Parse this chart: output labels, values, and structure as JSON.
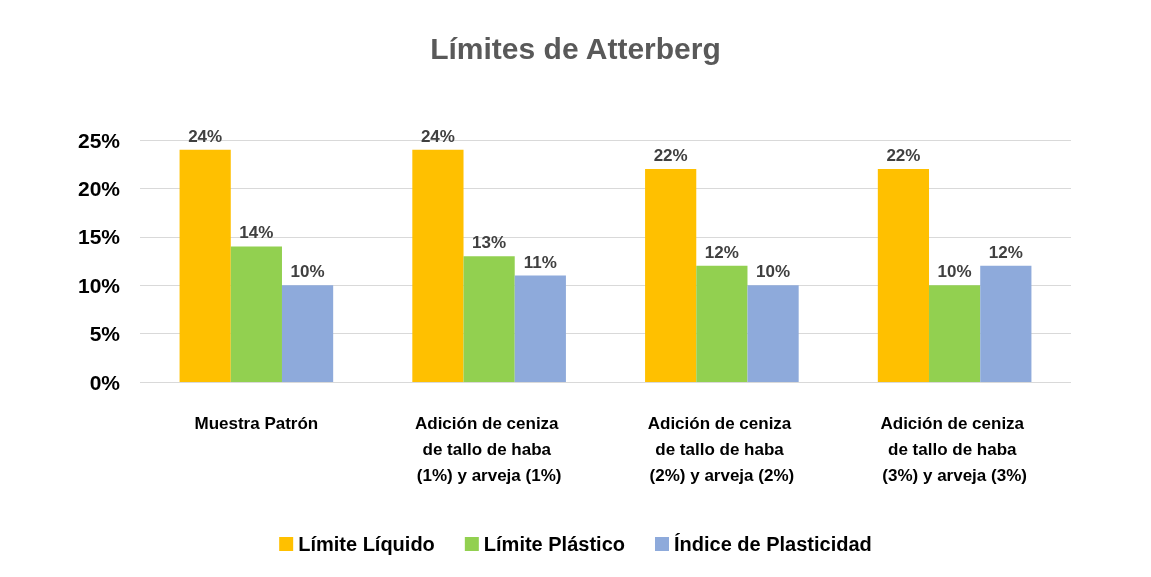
{
  "chart_data": {
    "type": "bar",
    "title": "Límites de Atterberg",
    "categories": [
      "Muestra Patrón",
      "Adición de ceniza de tallo de haba (1%) y arveja (1%)",
      "Adición de ceniza de tallo de haba (2%) y arveja (2%)",
      "Adición de ceniza de tallo de haba (3%) y arveja (3%)"
    ],
    "series": [
      {
        "name": "Límite Líquido",
        "color": "#ffc000",
        "values": [
          24,
          24,
          22,
          22
        ],
        "value_labels": [
          "24%",
          "24%",
          "22%",
          "22%"
        ]
      },
      {
        "name": "Límite Plástico",
        "color": "#92d050",
        "values": [
          14,
          13,
          12,
          10
        ],
        "value_labels": [
          "14%",
          "13%",
          "12%",
          "10%"
        ]
      },
      {
        "name": "Índice de Plasticidad",
        "color": "#8eaadb",
        "values": [
          10,
          11,
          10,
          12
        ],
        "value_labels": [
          "10%",
          "11%",
          "10%",
          "12%"
        ]
      }
    ],
    "ylim": [
      0,
      25
    ],
    "yticks": [
      {
        "value": 0,
        "label": "0%"
      },
      {
        "value": 5,
        "label": "5%"
      },
      {
        "value": 10,
        "label": "10%"
      },
      {
        "value": 15,
        "label": "15%"
      },
      {
        "value": 20,
        "label": "20%"
      },
      {
        "value": 25,
        "label": "25%"
      }
    ],
    "grid": "y",
    "legend": "bottom"
  }
}
